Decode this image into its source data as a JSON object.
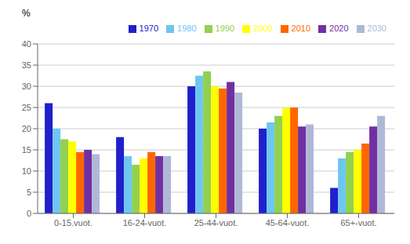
{
  "chart_data": {
    "type": "bar",
    "categories": [
      "0-15.vuot.",
      "16-24-vuot.",
      "25-44-vuot.",
      "45-64-vuot.",
      "65+-vuot."
    ],
    "series": [
      {
        "name": "1970",
        "color": "#2020CC",
        "values": [
          26.0,
          18.0,
          30.0,
          20.0,
          6.0
        ]
      },
      {
        "name": "1980",
        "color": "#6EC6F0",
        "values": [
          20.0,
          13.5,
          32.5,
          21.5,
          13.0
        ]
      },
      {
        "name": "1990",
        "color": "#92D050",
        "values": [
          17.5,
          11.5,
          33.5,
          23.0,
          14.5
        ]
      },
      {
        "name": "2000",
        "color": "#FFFF00",
        "values": [
          17.0,
          13.0,
          30.0,
          25.0,
          15.0
        ]
      },
      {
        "name": "2010",
        "color": "#FF6600",
        "values": [
          14.5,
          14.5,
          29.5,
          25.0,
          16.5
        ]
      },
      {
        "name": "2020",
        "color": "#7030A0",
        "values": [
          15.0,
          13.5,
          31.0,
          20.5,
          20.5
        ]
      },
      {
        "name": "2030",
        "color": "#B0B8D8",
        "values": [
          14.0,
          13.5,
          28.5,
          21.0,
          23.0
        ]
      }
    ],
    "ylabel": "%",
    "ylim": [
      0,
      40
    ],
    "yticks": [
      0,
      5,
      10,
      15,
      20,
      25,
      30,
      35,
      40
    ],
    "grid": true,
    "legend": "upper right"
  }
}
